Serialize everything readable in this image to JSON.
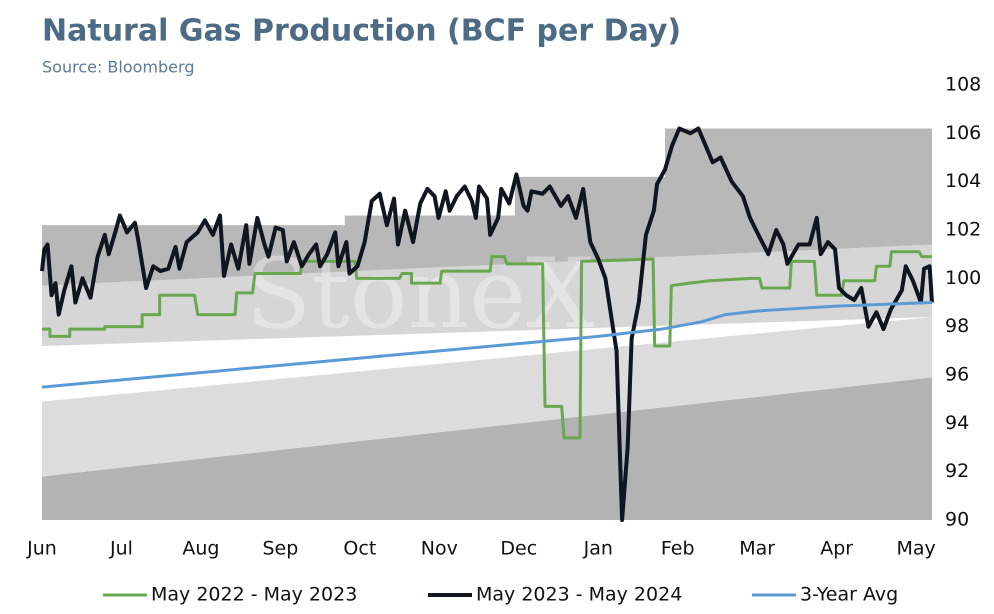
{
  "chart_data": {
    "type": "line",
    "title": "Natural Gas Production (BCF per Day)",
    "subtitle": "Source: Bloomberg",
    "watermark": "StoneX",
    "xlim": [
      0,
      11.2
    ],
    "xticks": [
      {
        "value": 0,
        "label": "Jun"
      },
      {
        "value": 1,
        "label": "Jul"
      },
      {
        "value": 2,
        "label": "Aug"
      },
      {
        "value": 3,
        "label": "Sep"
      },
      {
        "value": 4,
        "label": "Oct"
      },
      {
        "value": 5,
        "label": "Nov"
      },
      {
        "value": 6,
        "label": "Dec"
      },
      {
        "value": 7,
        "label": "Jan"
      },
      {
        "value": 8,
        "label": "Feb"
      },
      {
        "value": 9,
        "label": "Mar"
      },
      {
        "value": 10,
        "label": "Apr"
      },
      {
        "value": 11,
        "label": "May"
      }
    ],
    "ylim": [
      90,
      108
    ],
    "yticks": [
      90,
      92,
      94,
      96,
      98,
      100,
      102,
      104,
      106,
      108
    ],
    "y_axis_side": "right",
    "grid": false,
    "legend": "bottom",
    "bands": [
      {
        "color": "#b3b3b3",
        "x": [
          0,
          11.2
        ],
        "lower": [
          90,
          90
        ],
        "upper": [
          91.8,
          95.9
        ]
      },
      {
        "color": "#dcdcdc",
        "x": [
          0,
          11.2
        ],
        "lower": [
          91.8,
          95.9
        ],
        "upper": [
          94.9,
          98.4
        ]
      },
      {
        "color": "#d6d6d6",
        "x": [
          0,
          11.2
        ],
        "lower": [
          97.2,
          98.4
        ],
        "upper": [
          99.7,
          101.4
        ]
      },
      {
        "color": "#b8b8b8",
        "x": [
          0,
          3.81,
          3.81,
          5.95,
          5.95,
          7.84,
          7.84,
          11.2
        ],
        "lower": [
          99.7,
          100.28,
          100.28,
          100.6,
          100.6,
          100.89,
          100.89,
          101.4
        ],
        "upper": [
          102.2,
          102.2,
          102.6,
          102.6,
          104.2,
          104.2,
          106.2,
          106.2
        ]
      }
    ],
    "series": [
      {
        "name": "May 2022 - May 2023",
        "color": "#6aa84f",
        "width": 3,
        "x": [
          0,
          0.1,
          0.1,
          0.35,
          0.35,
          0.79,
          0.79,
          1.26,
          1.26,
          1.48,
          1.48,
          1.92,
          1.96,
          2.43,
          2.45,
          2.65,
          2.68,
          3.25,
          3.27,
          3.94,
          3.96,
          4.5,
          4.53,
          4.65,
          4.65,
          5.01,
          5.03,
          5.64,
          5.66,
          5.82,
          5.85,
          6.3,
          6.33,
          6.54,
          6.57,
          6.77,
          6.79,
          7.69,
          7.71,
          7.9,
          7.92,
          8.15,
          8.4,
          8.91,
          9.03,
          9.06,
          9.41,
          9.43,
          9.72,
          9.75,
          10.06,
          10.09,
          10.48,
          10.5,
          10.67,
          10.69,
          11.04,
          11.07,
          11.2
        ],
        "values": [
          97.9,
          97.9,
          97.6,
          97.6,
          97.9,
          97.9,
          98.0,
          98.0,
          98.5,
          98.5,
          99.3,
          99.3,
          98.5,
          98.5,
          99.4,
          99.4,
          100.2,
          100.2,
          100.7,
          100.7,
          100.0,
          100.0,
          100.2,
          100.2,
          99.8,
          99.8,
          100.3,
          100.3,
          100.9,
          100.9,
          100.6,
          100.6,
          94.7,
          94.7,
          93.4,
          93.4,
          100.7,
          100.8,
          97.2,
          97.2,
          99.7,
          99.8,
          99.9,
          100.0,
          100.0,
          99.6,
          99.6,
          100.7,
          100.7,
          99.3,
          99.3,
          99.9,
          99.9,
          100.5,
          100.5,
          101.1,
          101.1,
          100.9,
          100.9
        ]
      },
      {
        "name": "May 2023 - May 2024",
        "color": "#0f1620",
        "width": 4,
        "x": [
          0,
          0.03,
          0.07,
          0.12,
          0.17,
          0.21,
          0.28,
          0.37,
          0.42,
          0.51,
          0.61,
          0.7,
          0.79,
          0.84,
          0.93,
          0.98,
          1.07,
          1.17,
          1.21,
          1.31,
          1.4,
          1.49,
          1.59,
          1.68,
          1.73,
          1.82,
          1.96,
          2.05,
          2.15,
          2.24,
          2.29,
          2.38,
          2.47,
          2.57,
          2.61,
          2.71,
          2.8,
          2.85,
          2.94,
          3.03,
          3.08,
          3.17,
          3.27,
          3.36,
          3.45,
          3.5,
          3.59,
          3.69,
          3.73,
          3.83,
          3.87,
          3.97,
          4.06,
          4.15,
          4.25,
          4.34,
          4.43,
          4.48,
          4.57,
          4.67,
          4.76,
          4.85,
          4.94,
          4.99,
          5.08,
          5.13,
          5.22,
          5.32,
          5.41,
          5.46,
          5.5,
          5.6,
          5.64,
          5.74,
          5.78,
          5.88,
          5.97,
          6.06,
          6.11,
          6.16,
          6.3,
          6.39,
          6.53,
          6.62,
          6.72,
          6.81,
          6.9,
          7.0,
          7.09,
          7.23,
          7.3,
          7.37,
          7.42,
          7.51,
          7.6,
          7.7,
          7.74,
          7.84,
          7.93,
          8.02,
          8.16,
          8.26,
          8.35,
          8.44,
          8.54,
          8.68,
          8.82,
          8.91,
          9.0,
          9.14,
          9.24,
          9.33,
          9.38,
          9.52,
          9.66,
          9.75,
          9.8,
          9.89,
          9.98,
          10.03,
          10.12,
          10.22,
          10.31,
          10.4,
          10.5,
          10.59,
          10.68,
          10.82,
          10.87,
          10.96,
          11.06,
          11.1,
          11.17,
          11.2
        ],
        "values": [
          100.3,
          101.2,
          101.4,
          99.3,
          99.8,
          98.5,
          99.5,
          100.5,
          99.0,
          100.0,
          99.2,
          100.9,
          101.8,
          101.0,
          102.0,
          102.6,
          101.9,
          102.3,
          101.6,
          99.6,
          100.5,
          100.3,
          100.4,
          101.3,
          100.4,
          101.5,
          101.9,
          102.4,
          101.8,
          102.6,
          100.1,
          101.4,
          100.4,
          102.2,
          100.6,
          102.5,
          101.4,
          100.9,
          102.1,
          102.0,
          100.7,
          101.5,
          100.5,
          101.0,
          101.4,
          100.5,
          101.0,
          101.9,
          100.5,
          101.5,
          100.2,
          100.5,
          101.5,
          103.2,
          103.5,
          102.2,
          103.3,
          101.4,
          102.8,
          101.5,
          103.1,
          103.7,
          103.4,
          102.5,
          103.6,
          102.8,
          103.4,
          103.8,
          103.2,
          102.5,
          103.8,
          103.3,
          101.8,
          102.5,
          103.7,
          103.1,
          104.3,
          103.0,
          102.8,
          103.6,
          103.5,
          103.8,
          103.0,
          103.4,
          102.5,
          103.7,
          101.5,
          100.8,
          100.0,
          97.0,
          90.0,
          93.0,
          97.5,
          99.0,
          101.8,
          102.8,
          103.9,
          104.5,
          105.5,
          106.2,
          106.0,
          106.2,
          105.5,
          104.8,
          105.0,
          104.0,
          103.4,
          102.5,
          101.9,
          101.0,
          102.0,
          101.4,
          100.6,
          101.4,
          101.4,
          102.5,
          101.0,
          101.5,
          101.2,
          99.6,
          99.3,
          99.1,
          99.6,
          98.0,
          98.6,
          97.9,
          98.7,
          99.5,
          100.5,
          99.9,
          99.0,
          100.4,
          100.5,
          99.0
        ]
      },
      {
        "name": "3-Year Avg",
        "color": "#5b9bd5",
        "width": 3,
        "x": [
          0,
          1,
          2,
          3,
          4,
          5,
          6,
          7,
          7.8,
          8.3,
          8.6,
          9,
          10,
          11.2
        ],
        "values": [
          95.5,
          95.8,
          96.1,
          96.4,
          96.7,
          97.0,
          97.3,
          97.6,
          97.9,
          98.2,
          98.5,
          98.65,
          98.85,
          99.0
        ]
      }
    ]
  }
}
